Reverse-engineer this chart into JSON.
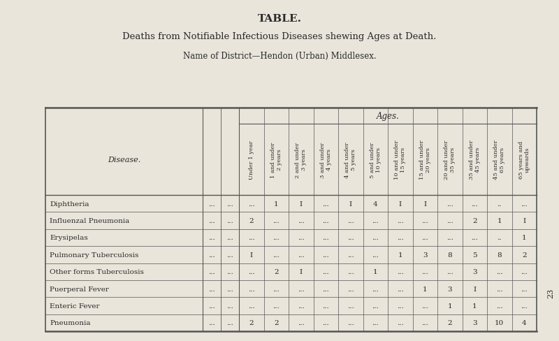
{
  "title": "TABLE.",
  "subtitle": "Deaths from Notifiable Infectious Diseases shewing Ages at Death.",
  "district": "Name of District—Hendon (Urban) Middlesex.",
  "ages_header": "Ages.",
  "disease_header": "Disease.",
  "col_headers": [
    "Under 1 year",
    "1 and under\n2 years",
    "2 and under\n3 years",
    "3 and under\n4 years",
    "4 and under\n5 years",
    "5 and under\n10 years",
    "10 and under\n15 years",
    "15 and under\n20 years",
    "20 and under\n35 years",
    "35 and under\n45 years",
    "45 and under\n65 years",
    "65 years and\nupwards"
  ],
  "diseases": [
    "Diphtheria",
    "Influenzal Pneumonia",
    "Erysipelas",
    "Pulmonary Tuberculosis",
    "Other forms Tuberculosis",
    "Puerperal Fever",
    "Enteric Fever",
    "Pneumonia"
  ],
  "data": [
    [
      "...",
      "1",
      "I",
      "...",
      "I",
      "4",
      "I",
      "I",
      "...",
      "...",
      "..",
      "..."
    ],
    [
      "2",
      "...",
      "...",
      "...",
      "...",
      "...",
      "...",
      "...",
      "...",
      "2",
      "1",
      "I"
    ],
    [
      "...",
      "...",
      "...",
      "...",
      "...",
      "...",
      "...",
      "...",
      "...",
      "...",
      "..",
      "1"
    ],
    [
      "I",
      "...",
      "...",
      "...",
      "...",
      "...",
      "1",
      "3",
      "8",
      "5",
      "8",
      "2"
    ],
    [
      "...",
      "2",
      "I",
      "...",
      "...",
      "1",
      "...",
      "...",
      "...",
      "3",
      "...",
      "..."
    ],
    [
      "...",
      "...",
      "...",
      "...",
      "...",
      "...",
      "...",
      "1",
      "3",
      "I",
      "...",
      "..."
    ],
    [
      "...",
      "...",
      "...",
      "...",
      "...",
      "...",
      "...",
      "...",
      "1",
      "1",
      "...",
      "..."
    ],
    [
      "2",
      "2",
      "...",
      "...",
      "...",
      "...",
      "...",
      "...",
      "2",
      "3",
      "10",
      "4"
    ]
  ],
  "sep_data": [
    [
      "...",
      "..."
    ],
    [
      "...",
      "..."
    ],
    [
      "...",
      "..."
    ],
    [
      "...",
      "..."
    ],
    [
      "...",
      "..."
    ],
    [
      "...",
      "..."
    ],
    [
      "...",
      "..."
    ],
    [
      "...",
      "..."
    ]
  ],
  "bg_color": "#e9e5db",
  "text_color": "#2a2a2a",
  "line_color": "#555555",
  "page_number": "23",
  "title_fontsize": 11,
  "subtitle_fontsize": 9.5,
  "district_fontsize": 8.5,
  "header_fontsize": 8.0,
  "cell_fontsize": 7.5,
  "col_header_fontsize": 6.0
}
